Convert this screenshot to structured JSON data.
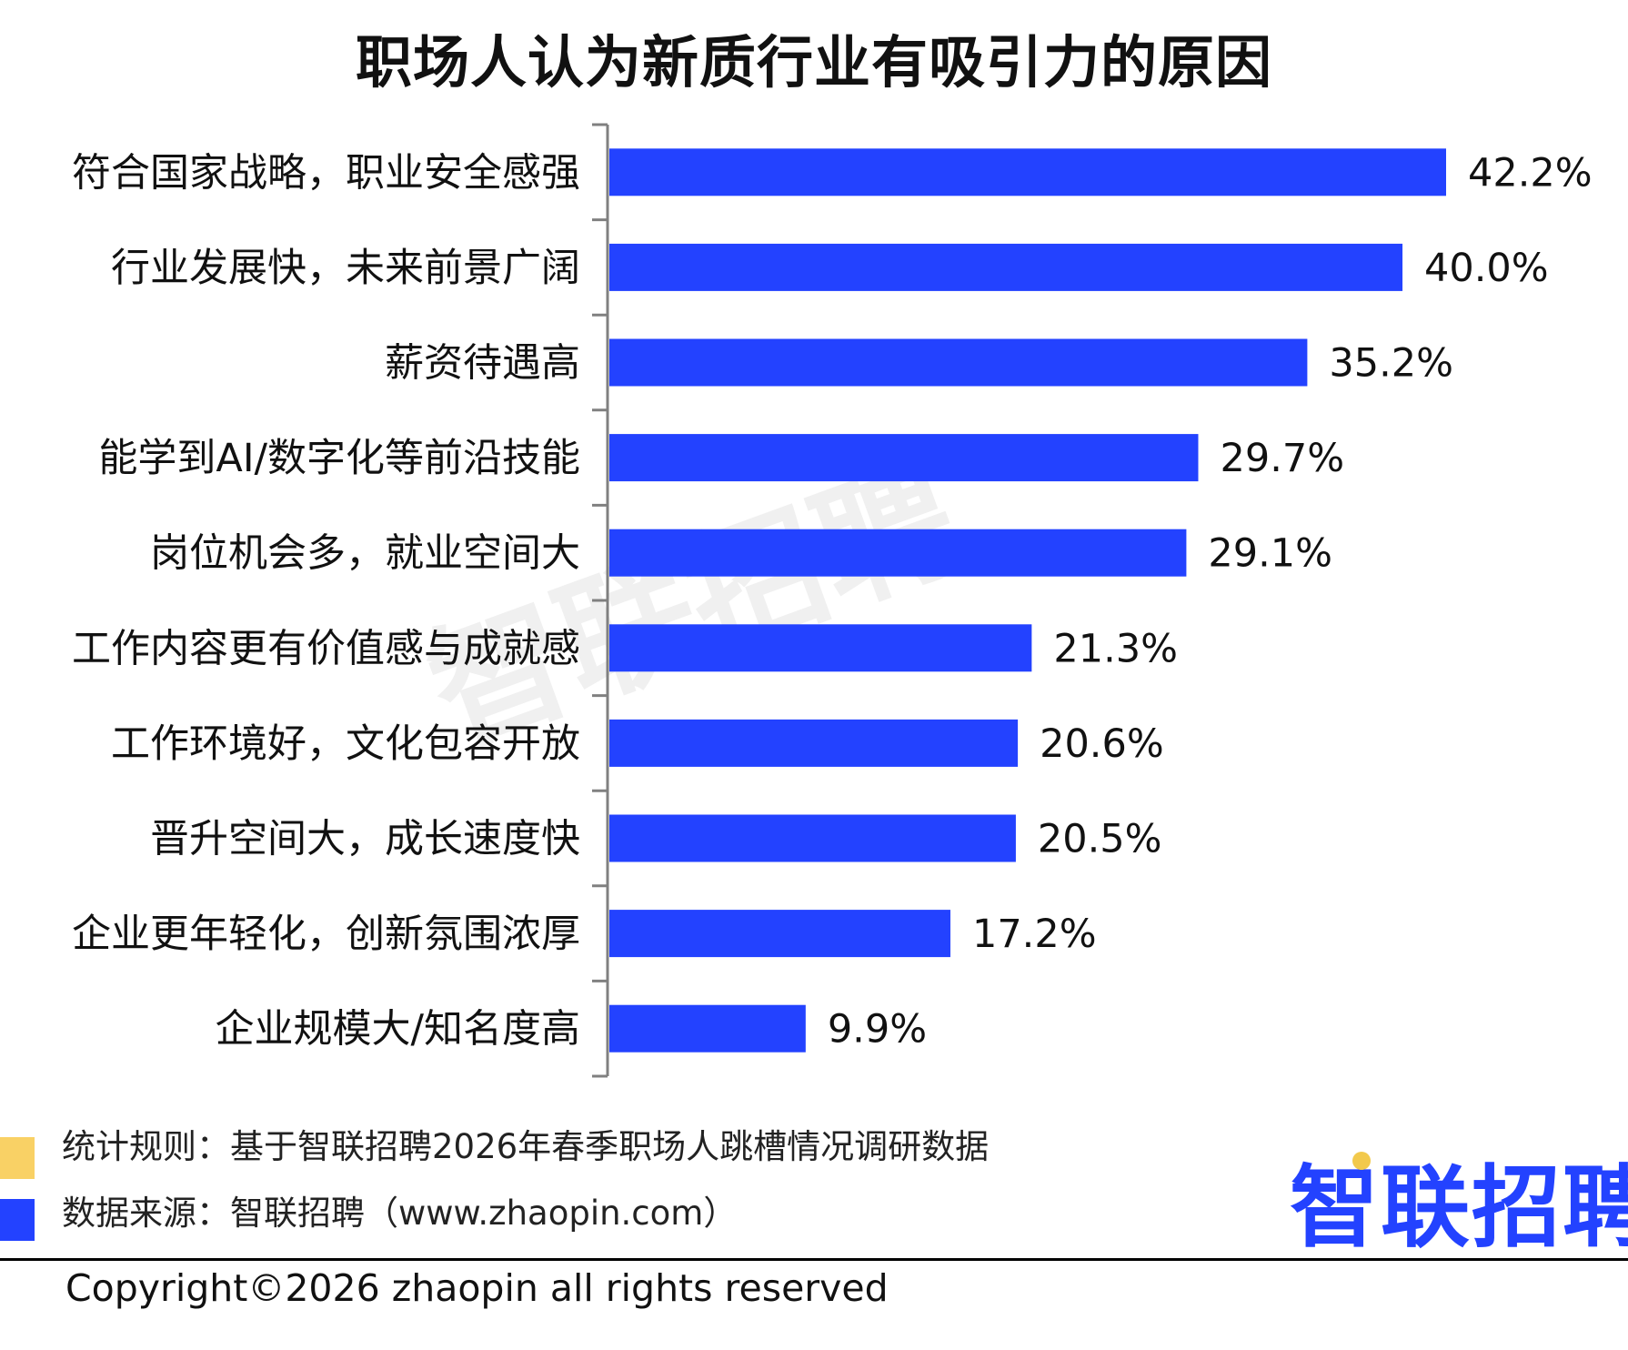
{
  "chart_data": {
    "type": "bar",
    "orientation": "horizontal",
    "title": "职场人认为新质行业有吸引力的原因",
    "categories": [
      "符合国家战略，职业安全感强",
      "行业发展快，未来前景广阔",
      "薪资待遇高",
      "能学到AI/数字化等前沿技能",
      "岗位机会多，就业空间大",
      "工作内容更有价值感与成就感",
      "工作环境好，文化包容开放",
      "晋升空间大，成长速度快",
      "企业更年轻化，创新氛围浓厚",
      "企业规模大/知名度高"
    ],
    "values": [
      42.2,
      40.0,
      35.2,
      29.7,
      29.1,
      21.3,
      20.6,
      20.5,
      17.2,
      9.9
    ],
    "value_labels": [
      "42.2%",
      "40.0%",
      "35.2%",
      "29.7%",
      "29.1%",
      "21.3%",
      "20.6%",
      "20.5%",
      "17.2%",
      "9.9%"
    ],
    "xlim": [
      0,
      42.2
    ],
    "grid": false,
    "bar_color": "#2342ff"
  },
  "watermark": "智联招聘",
  "footer": {
    "rule_note": "统计规则：基于智联招聘2026年春季职场人跳槽情况调研数据",
    "source_note": "数据来源：智联招聘（www.zhaopin.com）",
    "copyright": "Copyright©2026 zhaopin all rights reserved",
    "logo_text": "智联招聘"
  },
  "colors": {
    "bar": "#2342ff",
    "legend_yellow": "#f9d165",
    "legend_blue": "#2342ff",
    "logo": "#2342ff",
    "logo_dot": "#f2c94c"
  }
}
